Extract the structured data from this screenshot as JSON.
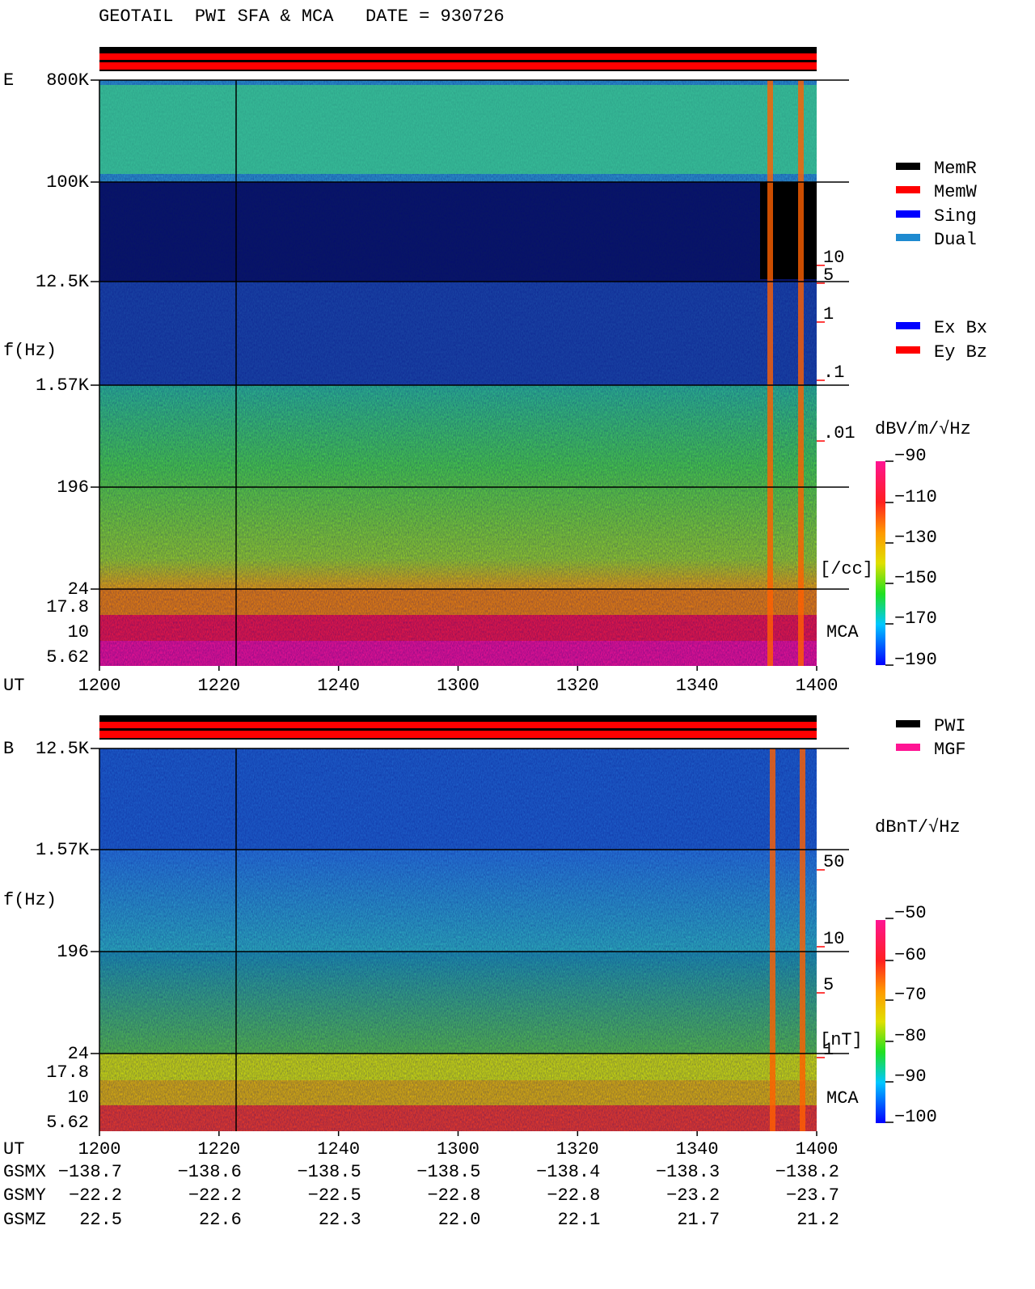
{
  "header": {
    "title": "GEOTAIL  PWI SFA & MCA   DATE = 930726"
  },
  "panels": [
    {
      "label": "E",
      "y_axis_label": "f(Hz)",
      "x_axis_label": "UT",
      "freq_ticks": [
        "800K",
        "100K",
        "12.5K",
        "1.57K",
        "196",
        "24",
        "17.8",
        "10",
        "5.62"
      ],
      "time_ticks": [
        "1200",
        "1220",
        "1240",
        "1300",
        "1320",
        "1340",
        "1400"
      ],
      "scale_ticks": [
        "10",
        "5",
        "1",
        ".1",
        ".01"
      ],
      "scale_unit": "[/cc]",
      "mca_label": "MCA",
      "colorbar_title": "dBV/m/√Hz",
      "colorbar_ticks": [
        "−90",
        "−110",
        "−130",
        "−150",
        "−170",
        "−190"
      ]
    },
    {
      "label": "B",
      "y_axis_label": "f(Hz)",
      "x_axis_label": "UT",
      "freq_ticks": [
        "12.5K",
        "1.57K",
        "196",
        "24",
        "17.8",
        "10",
        "5.62"
      ],
      "time_ticks": [
        "1200",
        "1220",
        "1240",
        "1300",
        "1320",
        "1340",
        "1400"
      ],
      "scale_ticks": [
        "50",
        "10",
        "5",
        "1"
      ],
      "scale_unit": "[nT]",
      "mca_label": "MCA",
      "colorbar_title": "dBnT/√Hz",
      "colorbar_ticks": [
        "−50",
        "−60",
        "−70",
        "−80",
        "−90",
        "−100"
      ]
    }
  ],
  "legend_mode": [
    {
      "label": "MemR",
      "color": "#000000"
    },
    {
      "label": "MemW",
      "color": "#ff0000"
    },
    {
      "label": "Sing",
      "color": "#0000ff"
    },
    {
      "label": "Dual",
      "color": "#1e8ad0"
    }
  ],
  "legend_antenna": [
    {
      "label": "Ex Bx",
      "color": "#0000ff"
    },
    {
      "label": "Ey Bz",
      "color": "#ff0000"
    }
  ],
  "legend_source": [
    {
      "label": "PWI",
      "color": "#000000"
    },
    {
      "label": "MGF",
      "color": "#ff1493"
    }
  ],
  "ephemeris": {
    "rows": [
      {
        "label": "GSMX",
        "values": [
          "−138.7",
          "−138.6",
          "−138.5",
          "−138.5",
          "−138.4",
          "−138.3",
          "−138.2"
        ]
      },
      {
        "label": "GSMY",
        "values": [
          "−22.2",
          "−22.2",
          "−22.5",
          "−22.8",
          "−22.8",
          "−23.2",
          "−23.7"
        ]
      },
      {
        "label": "GSMZ",
        "values": [
          "22.5",
          "22.6",
          "22.3",
          "22.0",
          "22.1",
          "21.7",
          "21.2"
        ]
      }
    ]
  }
}
